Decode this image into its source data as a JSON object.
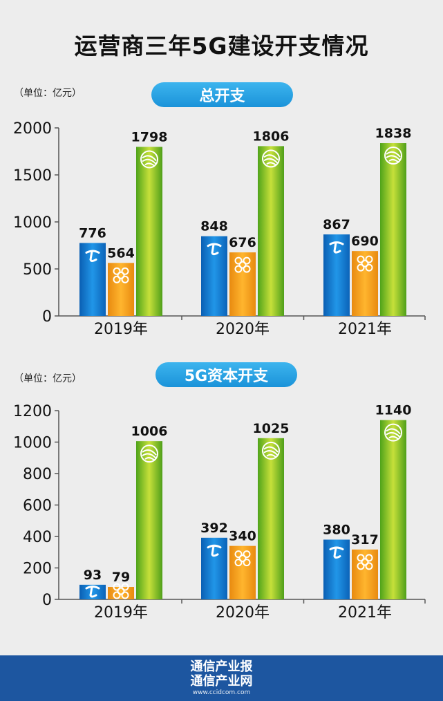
{
  "title": "运营商三年5G建设开支情况",
  "footer": {
    "line1": "通信产业报",
    "line2": "通信产业网",
    "url": "www.ccidcom.com"
  },
  "colors": {
    "telecom": "#1b7fd0",
    "unicom": "#f0a21a",
    "mobile": "#7cc22a",
    "pill": "#2aa6e6",
    "footer": "#1d56a0"
  },
  "chart_data": [
    {
      "type": "bar",
      "title": "总开支",
      "unit_label": "（单位：亿元）",
      "categories": [
        "2019年",
        "2020年",
        "2021年"
      ],
      "ylim": [
        0,
        2000
      ],
      "yticks": [
        0,
        500,
        1000,
        1500,
        2000
      ],
      "series": [
        {
          "icon": "china-telecom-logo-icon",
          "values": [
            776,
            848,
            867
          ]
        },
        {
          "icon": "china-unicom-logo-icon",
          "values": [
            564,
            676,
            690
          ]
        },
        {
          "icon": "china-mobile-logo-icon",
          "values": [
            1798,
            1806,
            1838
          ]
        }
      ]
    },
    {
      "type": "bar",
      "title": "5G资本开支",
      "unit_label": "（单位：亿元）",
      "categories": [
        "2019年",
        "2020年",
        "2021年"
      ],
      "ylim": [
        0,
        1200
      ],
      "yticks": [
        0,
        200,
        400,
        600,
        800,
        1000,
        1200
      ],
      "series": [
        {
          "icon": "china-telecom-logo-icon",
          "values": [
            93,
            392,
            380
          ]
        },
        {
          "icon": "china-unicom-logo-icon",
          "values": [
            79,
            340,
            317
          ]
        },
        {
          "icon": "china-mobile-logo-icon",
          "values": [
            1006,
            1025,
            1140
          ]
        }
      ]
    }
  ]
}
